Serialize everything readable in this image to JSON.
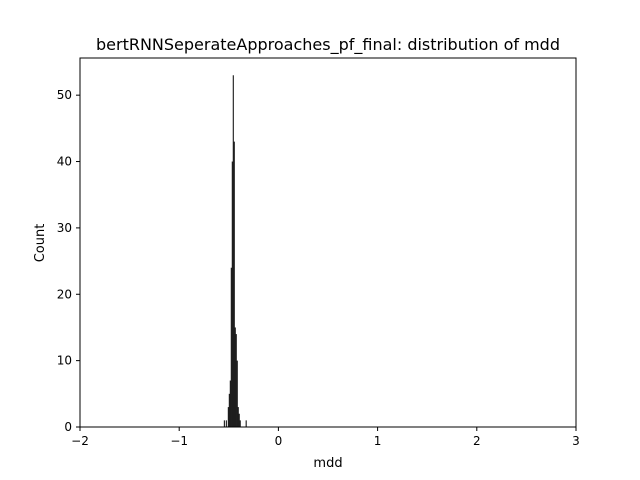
{
  "chart_data": {
    "type": "bar",
    "title": "bertRNNSeperateApproaches_pf_final: distribution of mdd",
    "xlabel": "mdd",
    "ylabel": "Count",
    "xlim": [
      -2,
      3
    ],
    "ylim": [
      0,
      55.6
    ],
    "xticks": [
      -2,
      -1,
      0,
      1,
      2,
      3
    ],
    "yticks": [
      0,
      10,
      20,
      30,
      40,
      50
    ],
    "xtick_labels": [
      "−2",
      "−1",
      "0",
      "1",
      "2",
      "3"
    ],
    "ytick_labels": [
      "0",
      "10",
      "20",
      "30",
      "40",
      "50"
    ],
    "grid": false,
    "bar_color": "#000000",
    "bin_width": 0.01,
    "bins": [
      {
        "x0": -0.55,
        "count": 1
      },
      {
        "x0": -0.53,
        "count": 1
      },
      {
        "x0": -0.51,
        "count": 3
      },
      {
        "x0": -0.5,
        "count": 5
      },
      {
        "x0": -0.49,
        "count": 7
      },
      {
        "x0": -0.48,
        "count": 24
      },
      {
        "x0": -0.47,
        "count": 40
      },
      {
        "x0": -0.46,
        "count": 53
      },
      {
        "x0": -0.45,
        "count": 43
      },
      {
        "x0": -0.44,
        "count": 15
      },
      {
        "x0": -0.43,
        "count": 14
      },
      {
        "x0": -0.42,
        "count": 10
      },
      {
        "x0": -0.41,
        "count": 3
      },
      {
        "x0": -0.4,
        "count": 2
      },
      {
        "x0": -0.39,
        "count": 1
      },
      {
        "x0": -0.33,
        "count": 1
      }
    ]
  }
}
